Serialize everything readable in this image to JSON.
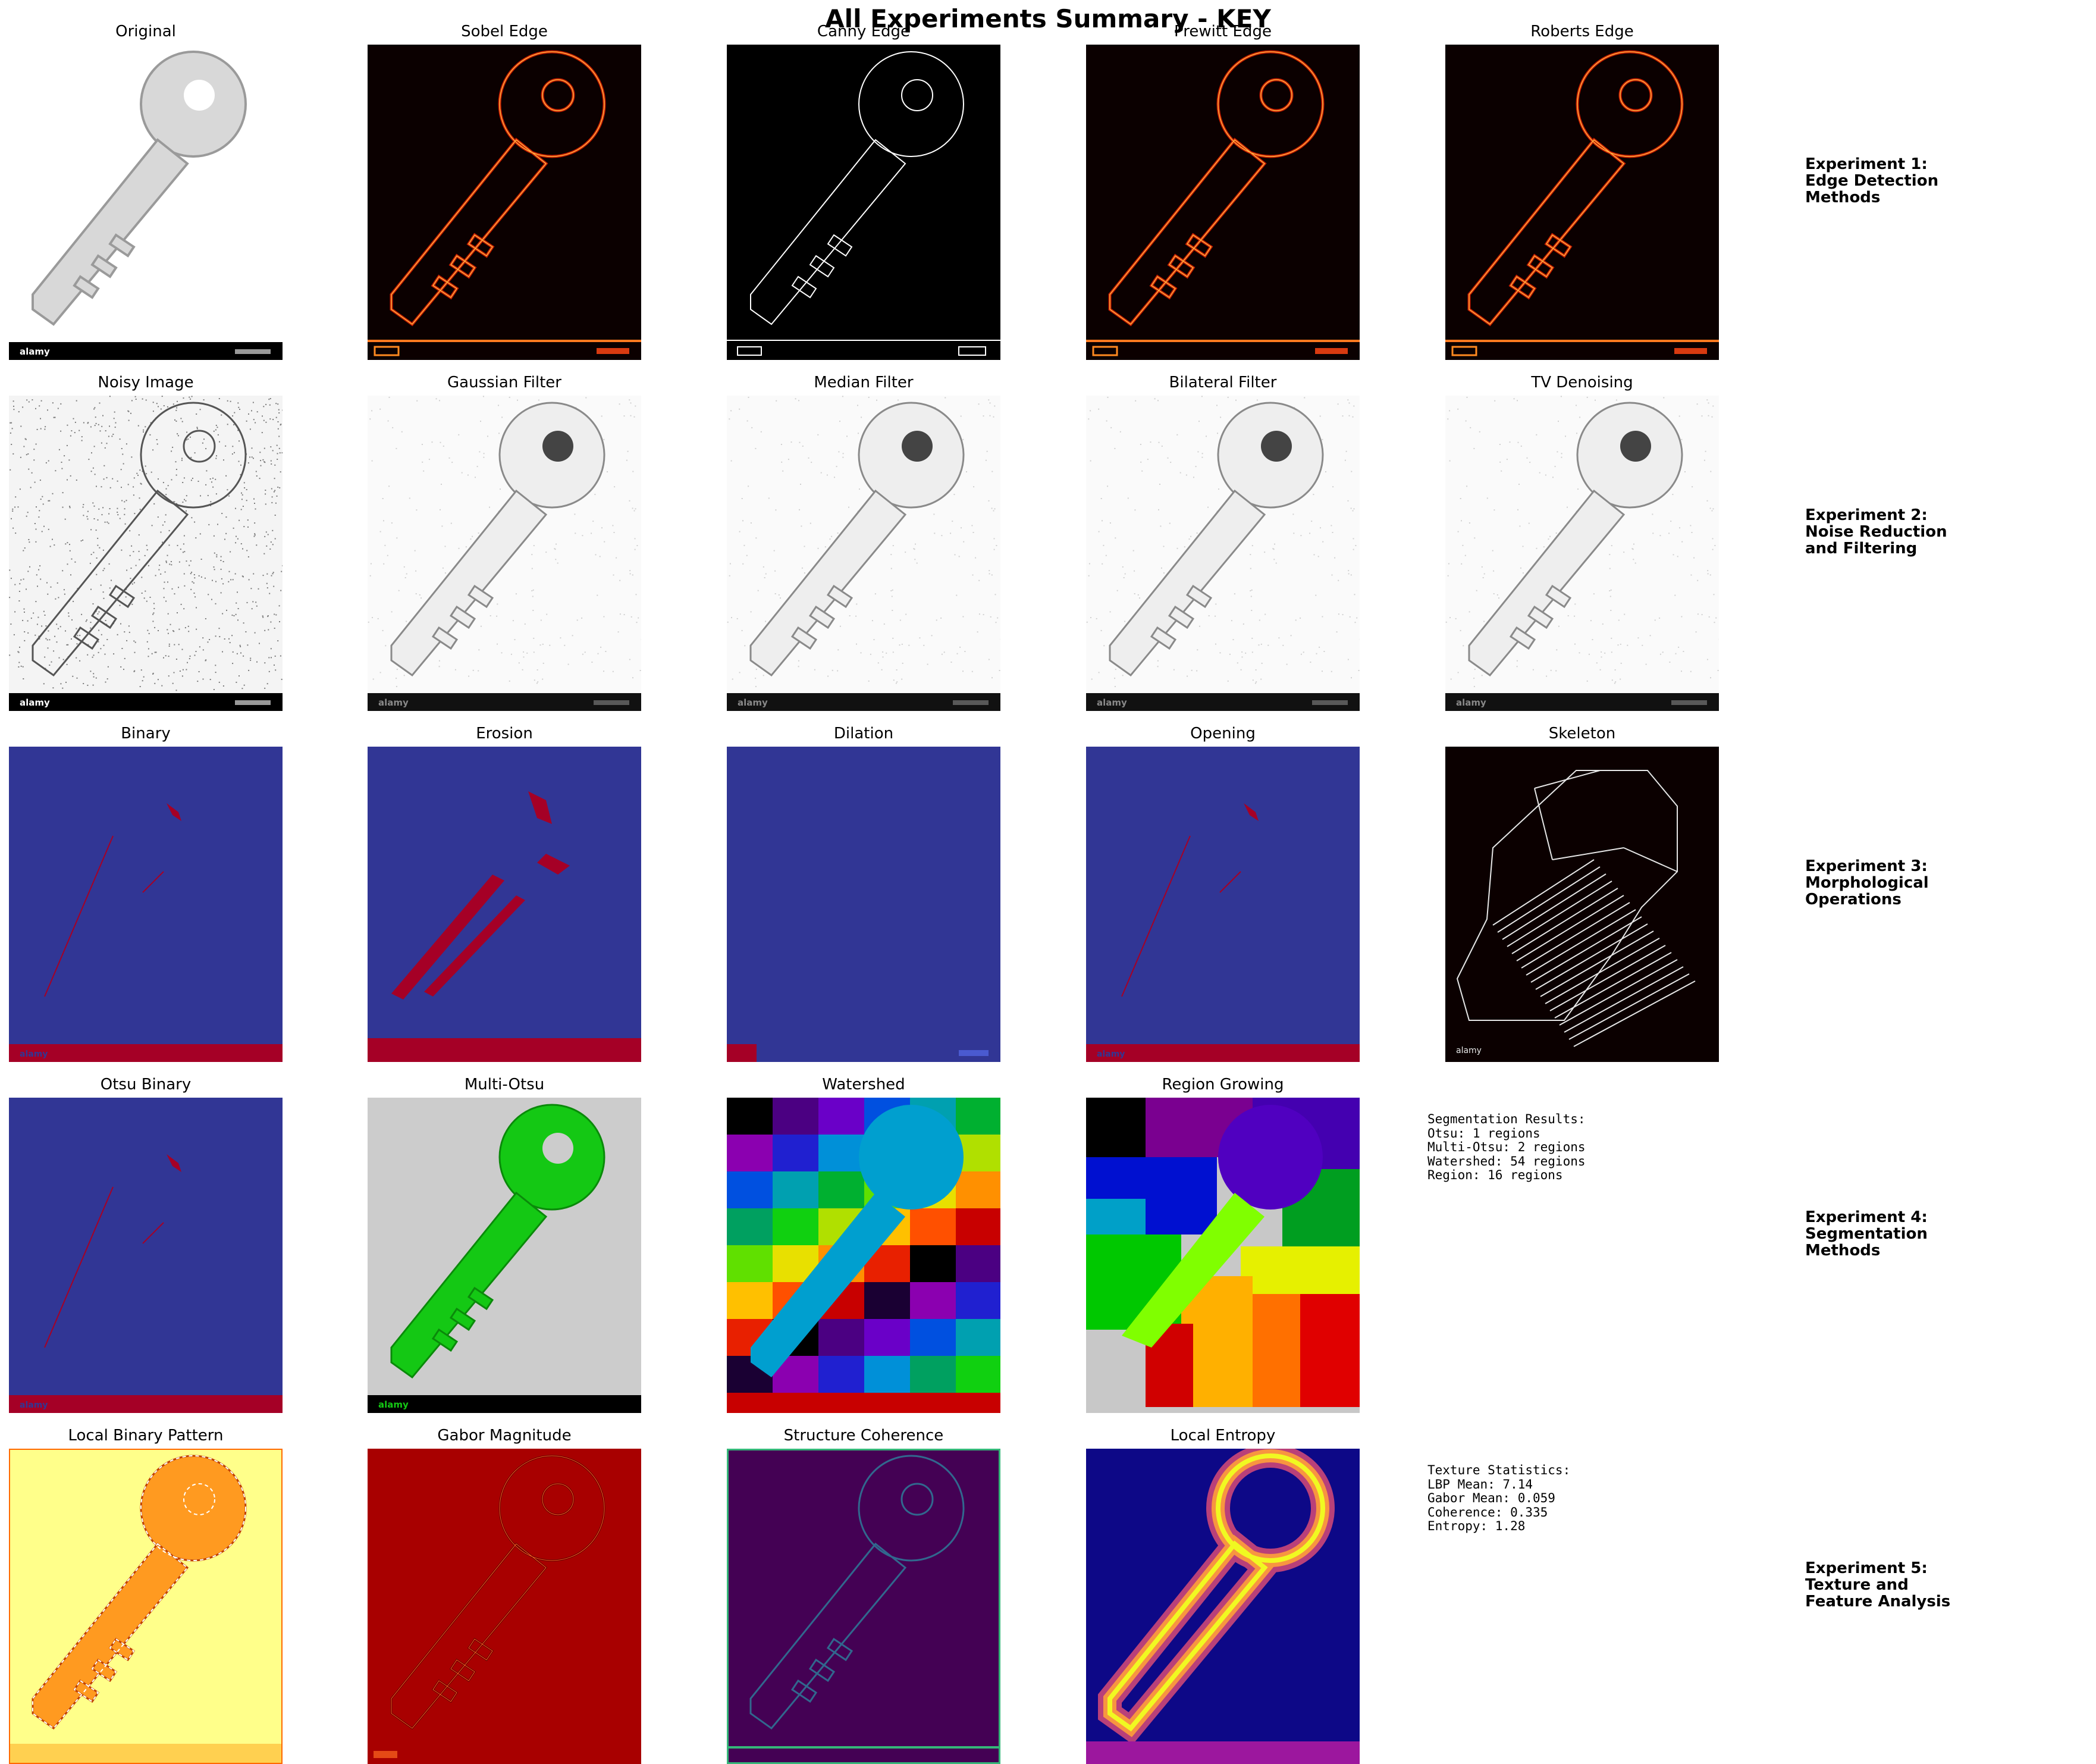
{
  "figure": {
    "title": "All Experiments Summary - KEY"
  },
  "rows": [
    {
      "panels": [
        {
          "title": "Original",
          "style": "original"
        },
        {
          "title": "Sobel Edge",
          "style": "hot-edge"
        },
        {
          "title": "Canny Edge",
          "style": "canny"
        },
        {
          "title": "Prewitt Edge",
          "style": "hot-edge"
        },
        {
          "title": "Roberts Edge",
          "style": "hot-edge"
        }
      ],
      "experiment_label": "Experiment 1:\nEdge Detection\nMethods"
    },
    {
      "panels": [
        {
          "title": "Noisy Image",
          "style": "noisy"
        },
        {
          "title": "Gaussian Filter",
          "style": "smooth"
        },
        {
          "title": "Median Filter",
          "style": "smooth"
        },
        {
          "title": "Bilateral Filter",
          "style": "smooth"
        },
        {
          "title": "TV Denoising",
          "style": "smooth"
        }
      ],
      "experiment_label": "Experiment 2:\nNoise Reduction\nand Filtering"
    },
    {
      "panels": [
        {
          "title": "Binary",
          "style": "binary"
        },
        {
          "title": "Erosion",
          "style": "erosion"
        },
        {
          "title": "Dilation",
          "style": "dilation"
        },
        {
          "title": "Opening",
          "style": "binary"
        },
        {
          "title": "Skeleton",
          "style": "skeleton"
        }
      ],
      "experiment_label": "Experiment 3:\nMorphological\nOperations"
    },
    {
      "panels": [
        {
          "title": "Otsu Binary",
          "style": "binary"
        },
        {
          "title": "Multi-Otsu",
          "style": "multiotsu"
        },
        {
          "title": "Watershed",
          "style": "watershed"
        },
        {
          "title": "Region Growing",
          "style": "region"
        }
      ],
      "experiment_label": "Experiment 4:\nSegmentation\nMethods",
      "stats": [
        "Segmentation Results:",
        "Otsu: 1 regions",
        "Multi-Otsu: 2 regions",
        "Watershed: 54 regions",
        "Region: 16 regions"
      ]
    },
    {
      "panels": [
        {
          "title": "Local Binary Pattern",
          "style": "lbp"
        },
        {
          "title": "Gabor Magnitude",
          "style": "gabor"
        },
        {
          "title": "Structure Coherence",
          "style": "coherence"
        },
        {
          "title": "Local Entropy",
          "style": "entropy"
        }
      ],
      "experiment_label": "Experiment 5:\nTexture and\nFeature Analysis",
      "stats": [
        "Texture Statistics:",
        "LBP Mean: 7.14",
        "Gabor Mean: 0.059",
        "Coherence: 0.335",
        "Entropy: 1.28"
      ]
    }
  ],
  "footer_watermark": {
    "brand": "alamy"
  },
  "colors": {
    "jet_blue": "#313695",
    "jet_red": "#a50026",
    "hot_black": "#0b0000",
    "gabor_red": "#a80000",
    "viridis_dark": "#440154",
    "plasma_dark": "#0d0887",
    "lbp_yellow": "#ffff8a"
  }
}
